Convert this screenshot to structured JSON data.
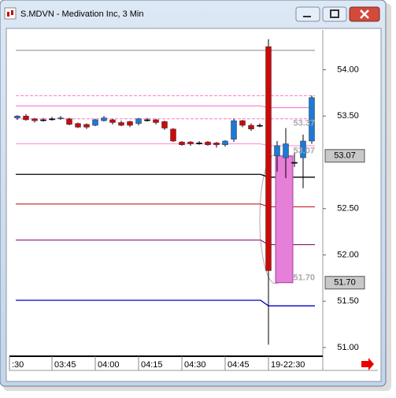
{
  "window": {
    "title": "S.MDVN - Medivation Inc, 3 Min"
  },
  "chart_data": {
    "type": "candlestick",
    "categories": [
      ":30",
      null,
      null,
      null,
      "03:45",
      null,
      null,
      null,
      null,
      "04:00",
      null,
      null,
      null,
      null,
      "04:15",
      null,
      null,
      null,
      null,
      "04:30",
      null,
      null,
      null,
      null,
      "04:45",
      null,
      null,
      null,
      null,
      "19-22:30",
      null,
      null,
      null,
      null,
      null
    ],
    "open": [
      53.48,
      53.5,
      53.47,
      53.46,
      53.47,
      53.47,
      53.47,
      53.42,
      53.41,
      53.4,
      53.45,
      53.46,
      53.43,
      53.44,
      53.42,
      53.46,
      53.46,
      53.44,
      53.36,
      53.22,
      53.22,
      53.21,
      53.22,
      53.21,
      53.19,
      53.25,
      53.45,
      53.4,
      53.4,
      54.25,
      53.07,
      53.05,
      53.0,
      53.05,
      53.23
    ],
    "high": [
      53.51,
      53.52,
      53.48,
      53.48,
      53.49,
      53.5,
      53.48,
      53.43,
      53.42,
      53.47,
      53.5,
      53.47,
      53.45,
      53.45,
      53.48,
      53.48,
      53.47,
      53.45,
      53.37,
      53.23,
      53.23,
      53.23,
      53.23,
      53.22,
      53.24,
      53.47,
      53.46,
      53.42,
      53.42,
      54.33,
      53.23,
      53.37,
      53.1,
      53.3,
      53.72
    ],
    "low": [
      53.46,
      53.45,
      53.43,
      53.44,
      53.45,
      53.46,
      53.4,
      53.37,
      53.36,
      53.39,
      53.44,
      53.41,
      53.39,
      53.38,
      53.4,
      53.44,
      53.41,
      53.35,
      53.22,
      53.18,
      53.18,
      53.19,
      53.18,
      53.16,
      53.17,
      53.22,
      53.38,
      53.34,
      53.38,
      51.03,
      52.9,
      52.83,
      52.95,
      52.72,
      53.2
    ],
    "close": [
      53.5,
      53.46,
      53.45,
      53.46,
      53.47,
      53.48,
      53.41,
      53.38,
      53.38,
      53.46,
      53.48,
      53.43,
      53.4,
      53.4,
      53.47,
      53.46,
      53.43,
      53.37,
      53.23,
      53.19,
      53.2,
      53.21,
      53.19,
      53.19,
      53.23,
      53.45,
      53.4,
      53.36,
      53.4,
      51.83,
      53.18,
      53.2,
      53.0,
      53.23,
      53.7
    ],
    "up_color": "#1c7ad6",
    "down_color": "#cc0a0a",
    "ylim": [
      50.94,
      54.43
    ],
    "yticks": [
      {
        "value": 51,
        "label": "51.00"
      },
      {
        "value": 51.5,
        "label": "51.50"
      },
      {
        "value": 52,
        "label": "52.00"
      },
      {
        "value": 52.5,
        "label": "52.50"
      },
      {
        "value": 53.5,
        "label": "53.50"
      },
      {
        "value": 54,
        "label": "54.00"
      }
    ],
    "levels": [
      {
        "color": "#888888",
        "dash": false,
        "values": [
          54.21,
          54.21
        ]
      },
      {
        "color": "#ff77cc",
        "dash": true,
        "values": [
          53.72,
          53.72
        ]
      },
      {
        "color": "#ff66cc",
        "dash": false,
        "values": [
          53.61,
          53.59
        ]
      },
      {
        "color": "#ff77cc",
        "dash": true,
        "values": [
          53.47,
          53.47
        ]
      },
      {
        "color": "#ff88dd",
        "dash": false,
        "values": [
          53.2,
          53.18
        ]
      },
      {
        "color": "#000000",
        "dash": false,
        "values": [
          52.87,
          52.84
        ]
      },
      {
        "color": "#c00000",
        "dash": false,
        "values": [
          52.55,
          52.52
        ]
      },
      {
        "color": "#800060",
        "dash": false,
        "values": [
          52.16,
          52.11
        ]
      },
      {
        "color": "#0000cc",
        "dash": false,
        "values": [
          51.51,
          51.45
        ]
      }
    ],
    "highlight": {
      "color": "#e57fd8",
      "values": [
        53.07,
        51.7
      ]
    },
    "price_labels": [
      {
        "value": 53.37,
        "label": "53.37"
      },
      {
        "value": 53.07,
        "label": "53.07"
      },
      {
        "value": 51.7,
        "label": "51.70"
      }
    ],
    "axis_markers": [
      {
        "value": 53.07,
        "label": "53.07"
      },
      {
        "value": 51.7,
        "label": "51.70"
      }
    ]
  }
}
